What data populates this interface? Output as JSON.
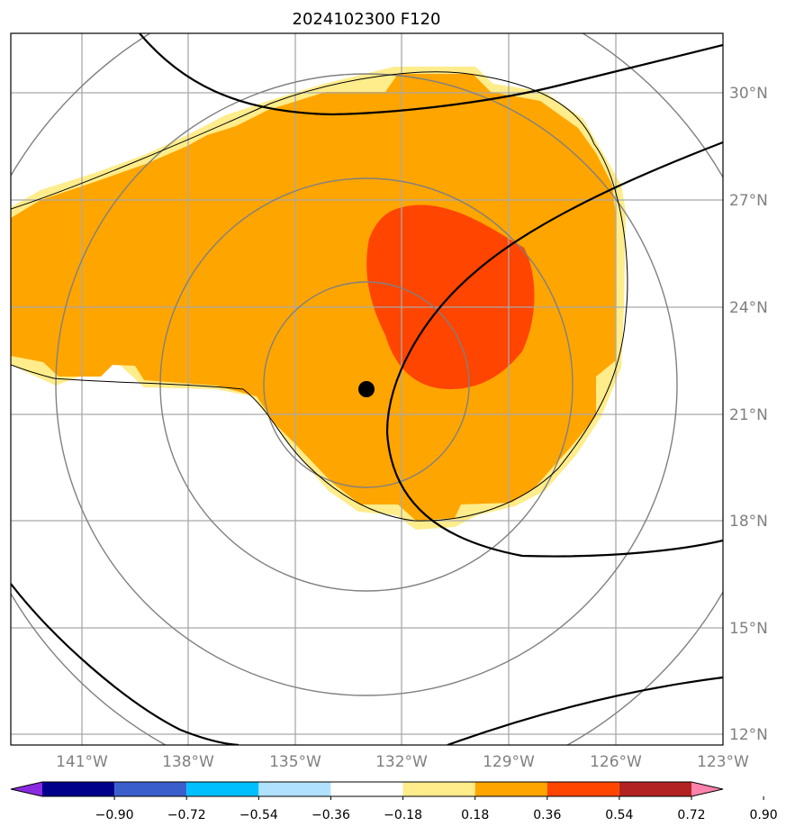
{
  "title": "2024102300 F120",
  "map": {
    "lat_labels": [
      "30°N",
      "27°N",
      "24°N",
      "21°N",
      "18°N",
      "15°N",
      "12°N"
    ],
    "lon_labels": [
      "141°W",
      "138°W",
      "135°W",
      "132°W",
      "129°W",
      "126°W",
      "123°W"
    ],
    "storm_center": {
      "lat": 21.7,
      "lon": -133.0
    }
  },
  "colorbar": {
    "colors": [
      "#8a2be2",
      "#00008b",
      "#3a5fcd",
      "#00bfff",
      "#b0e2ff",
      "#ffffff",
      "#ffec8b",
      "#ffa500",
      "#ff4500",
      "#b22222",
      "#ff82ab"
    ],
    "tick_labels": [
      "−0.90",
      "−0.72",
      "−0.54",
      "−0.36",
      "−0.18",
      "0.18",
      "0.36",
      "0.54",
      "0.72",
      "0.90"
    ]
  }
}
